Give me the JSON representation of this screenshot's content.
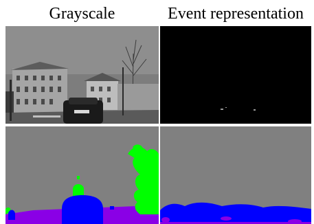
{
  "figure": {
    "columns": [
      {
        "label": "Grayscale"
      },
      {
        "label": "Event representation"
      }
    ]
  },
  "colors": {
    "background": "#ffffff",
    "seg_flat": "#808080",
    "seg_vegetation": "#00ff00",
    "seg_vehicle": "#0000ff",
    "seg_ground": "#8a00e6",
    "event_background": "#000000"
  }
}
